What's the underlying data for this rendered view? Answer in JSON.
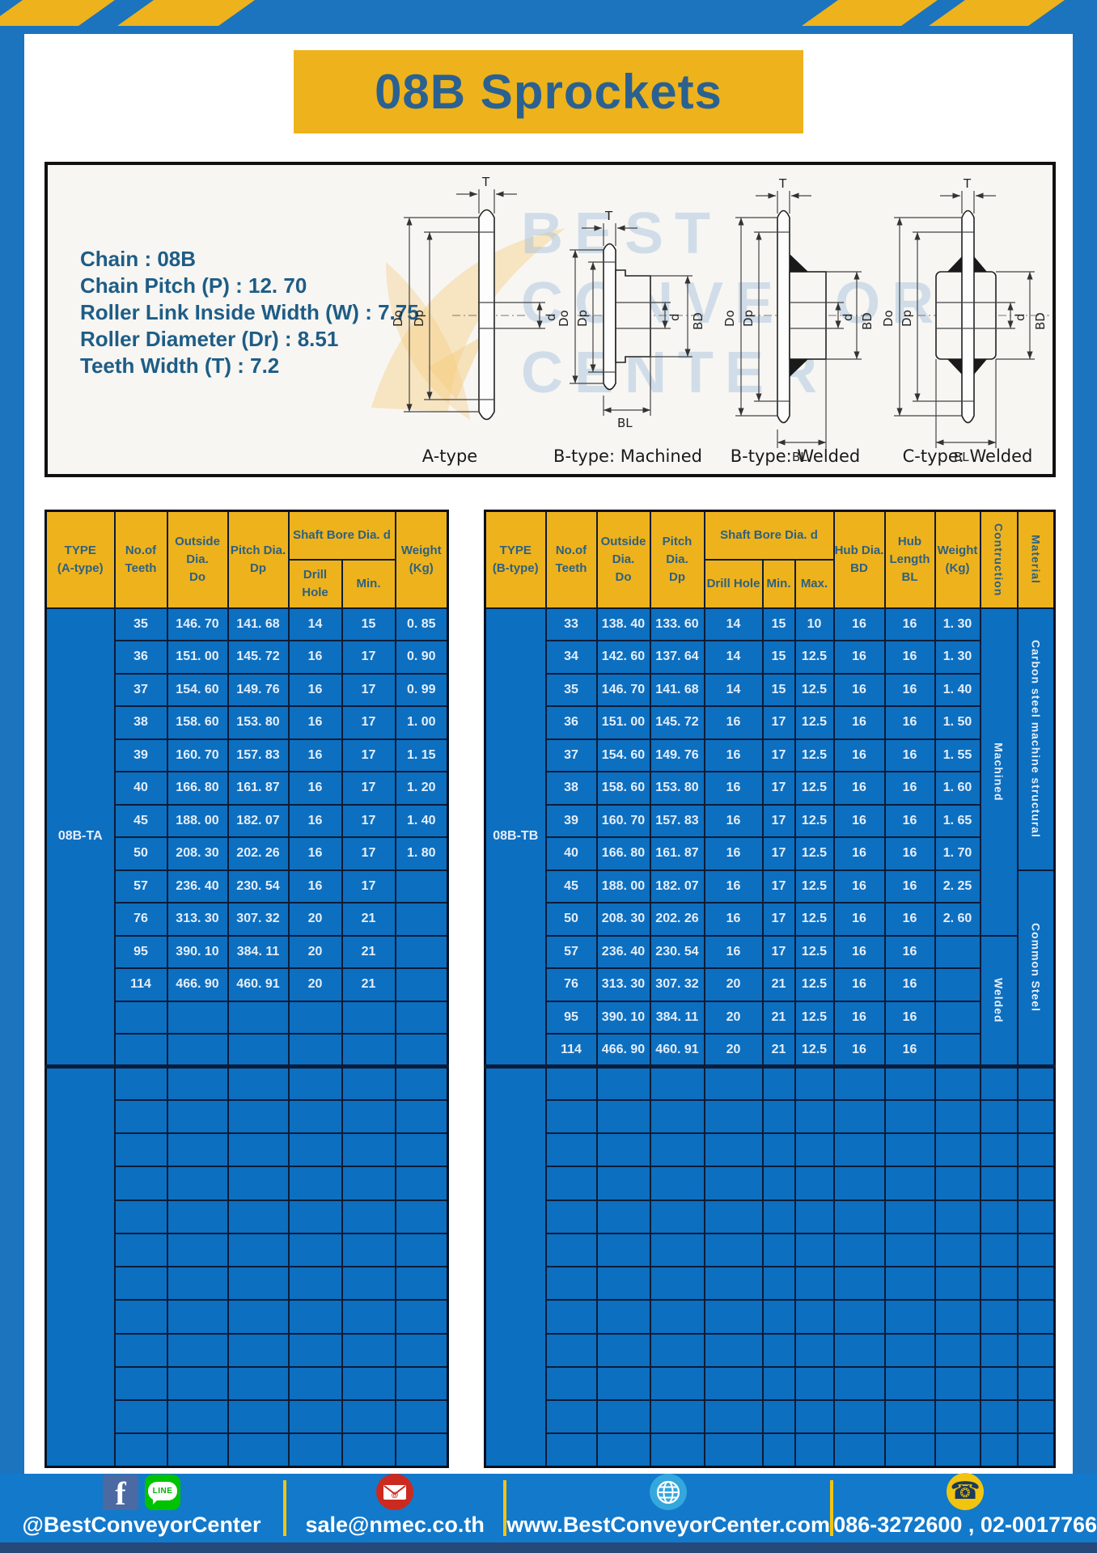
{
  "title": "08B Sprockets",
  "specs": {
    "chain": "Chain : 08B",
    "pitch": "Chain Pitch (P) : 12. 70",
    "roller_width": "Roller Link Inside Width (W) : 7.75",
    "roller_dia": "Roller Diameter (Dr) : 8.51",
    "teeth_width": "Teeth Width (T) : 7.2"
  },
  "diagram": {
    "labels": [
      "A-type",
      "B-type: Machined",
      "B-type: Welded",
      "C-type: Welded"
    ],
    "dims": {
      "T": "T",
      "Do": "Do",
      "Dp": "Dp",
      "d": "d",
      "BD": "BD",
      "BL": "BL"
    },
    "watermark": {
      "line1": "BEST",
      "line2": "CONVEYOR",
      "line3": "CENTER"
    }
  },
  "table_a": {
    "headers": {
      "type": [
        "TYPE",
        "(A-type)"
      ],
      "teeth": [
        "No.of",
        "Teeth"
      ],
      "outside": [
        "Outside",
        "Dia.",
        "Do"
      ],
      "pitch": [
        "Pitch Dia.",
        "Dp"
      ],
      "shaft": "Shaft Bore Dia. d",
      "shaft_sub": [
        "Drill Hole",
        "Min."
      ],
      "weight": [
        "Weight",
        "(Kg)"
      ]
    },
    "type_label": "08B-TA",
    "rows": [
      [
        "35",
        "146. 70",
        "141. 68",
        "14",
        "15",
        "0. 85"
      ],
      [
        "36",
        "151. 00",
        "145. 72",
        "16",
        "17",
        "0. 90"
      ],
      [
        "37",
        "154. 60",
        "149. 76",
        "16",
        "17",
        "0. 99"
      ],
      [
        "38",
        "158. 60",
        "153. 80",
        "16",
        "17",
        "1. 00"
      ],
      [
        "39",
        "160. 70",
        "157. 83",
        "16",
        "17",
        "1. 15"
      ],
      [
        "40",
        "166. 80",
        "161. 87",
        "16",
        "17",
        "1. 20"
      ],
      [
        "45",
        "188. 00",
        "182. 07",
        "16",
        "17",
        "1. 40"
      ],
      [
        "50",
        "208. 30",
        "202. 26",
        "16",
        "17",
        "1. 80"
      ],
      [
        "57",
        "236. 40",
        "230. 54",
        "16",
        "17",
        ""
      ],
      [
        "76",
        "313. 30",
        "307. 32",
        "20",
        "21",
        ""
      ],
      [
        "95",
        "390. 10",
        "384. 11",
        "20",
        "21",
        ""
      ],
      [
        "114",
        "466. 90",
        "460. 91",
        "20",
        "21",
        ""
      ]
    ],
    "empty_rows_section1": 2,
    "empty_rows_section2": 12
  },
  "table_b": {
    "headers": {
      "type": [
        "TYPE",
        "(B-type)"
      ],
      "teeth": [
        "No.of",
        "Teeth"
      ],
      "outside": [
        "Outside",
        "Dia.",
        "Do"
      ],
      "pitch": [
        "Pitch Dia.",
        "Dp"
      ],
      "shaft": "Shaft Bore Dia. d",
      "shaft_sub": [
        "Drill Hole",
        "Min.",
        "Max."
      ],
      "hub_dia": [
        "Hub Dia.",
        "BD"
      ],
      "hub_len": [
        "Hub",
        "Length",
        "BL"
      ],
      "weight": [
        "Weight",
        "(Kg)"
      ],
      "construction": "Contruction",
      "material": "Material"
    },
    "type_label": "08B-TB",
    "rows": [
      [
        "33",
        "138. 40",
        "133. 60",
        "14",
        "15",
        "10",
        "16",
        "16",
        "1. 30"
      ],
      [
        "34",
        "142. 60",
        "137. 64",
        "14",
        "15",
        "12.5",
        "16",
        "16",
        "1. 30"
      ],
      [
        "35",
        "146. 70",
        "141. 68",
        "14",
        "15",
        "12.5",
        "16",
        "16",
        "1. 40"
      ],
      [
        "36",
        "151. 00",
        "145. 72",
        "16",
        "17",
        "12.5",
        "16",
        "16",
        "1. 50"
      ],
      [
        "37",
        "154. 60",
        "149. 76",
        "16",
        "17",
        "12.5",
        "16",
        "16",
        "1. 55"
      ],
      [
        "38",
        "158. 60",
        "153. 80",
        "16",
        "17",
        "12.5",
        "16",
        "16",
        "1. 60"
      ],
      [
        "39",
        "160. 70",
        "157. 83",
        "16",
        "17",
        "12.5",
        "16",
        "16",
        "1. 65"
      ],
      [
        "40",
        "166. 80",
        "161. 87",
        "16",
        "17",
        "12.5",
        "16",
        "16",
        "1. 70"
      ],
      [
        "45",
        "188. 00",
        "182. 07",
        "16",
        "17",
        "12.5",
        "16",
        "16",
        "2. 25"
      ],
      [
        "50",
        "208. 30",
        "202. 26",
        "16",
        "17",
        "12.5",
        "16",
        "16",
        "2. 60"
      ],
      [
        "57",
        "236. 40",
        "230. 54",
        "16",
        "17",
        "12.5",
        "16",
        "16",
        ""
      ],
      [
        "76",
        "313. 30",
        "307. 32",
        "20",
        "21",
        "12.5",
        "16",
        "16",
        ""
      ],
      [
        "95",
        "390. 10",
        "384. 11",
        "20",
        "21",
        "12.5",
        "16",
        "16",
        ""
      ],
      [
        "114",
        "466. 90",
        "460. 91",
        "20",
        "21",
        "12.5",
        "16",
        "16",
        ""
      ]
    ],
    "construction_cells": [
      {
        "label": "Machined",
        "span": 10
      },
      {
        "label": "Welded",
        "span": 4
      }
    ],
    "material_cells": [
      {
        "label": "Carbon steel  machine structural",
        "span": 8
      },
      {
        "label": "Common Steel",
        "span": 6
      }
    ],
    "empty_rows_section2": 12
  },
  "footer": {
    "facebook": "@BestConveyorCenter",
    "line_label": "LINE",
    "email": "sale@nmec.co.th",
    "website": "www.BestConveyorCenter.com",
    "phone": "086-3272600 , 02-0017766"
  },
  "colors": {
    "frame_blue": "#1b74bd",
    "cell_blue": "#0d6fc0",
    "header_yellow": "#eeb21c",
    "title_text": "#2a6191",
    "footer_blue": "#1379cb",
    "stripe_yellow": "#eeb21c",
    "bottom_strip": "#26497a",
    "spec_text": "#1e5d86"
  }
}
